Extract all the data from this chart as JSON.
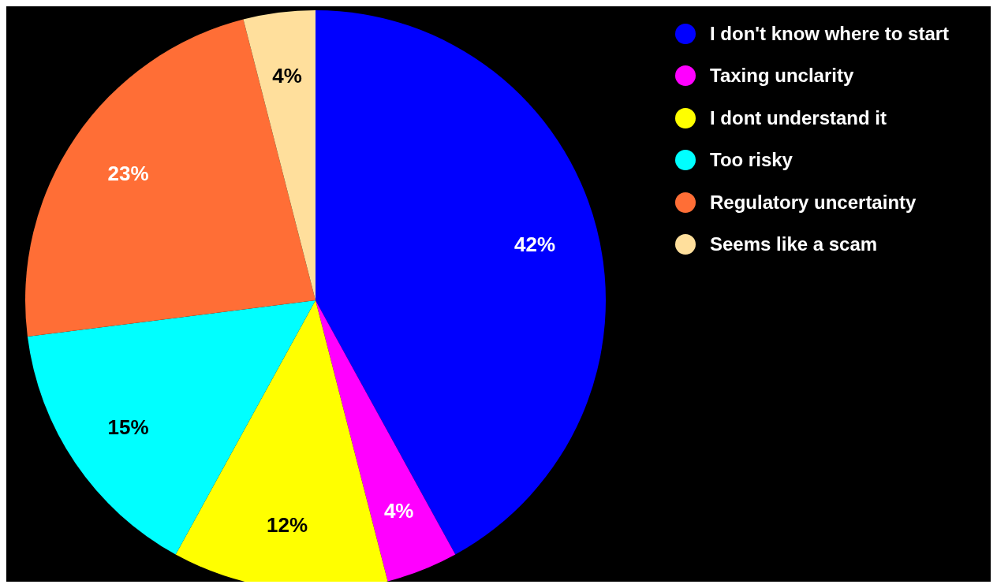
{
  "chart_data": {
    "type": "pie",
    "categories": [
      "I don't know where to start",
      "Taxing unclarity",
      "I dont understand it",
      "Too risky",
      "Regulatory uncertainty",
      "Seems like a scam"
    ],
    "values": [
      42,
      4,
      12,
      15,
      23,
      4
    ],
    "value_labels": [
      "42%",
      "4%",
      "12%",
      "15%",
      "23%",
      "4%"
    ],
    "colors": [
      "#0000ff",
      "#ff00ff",
      "#ffff00",
      "#00ffff",
      "#ff6e36",
      "#ffdf9c"
    ],
    "legend": "top right"
  }
}
